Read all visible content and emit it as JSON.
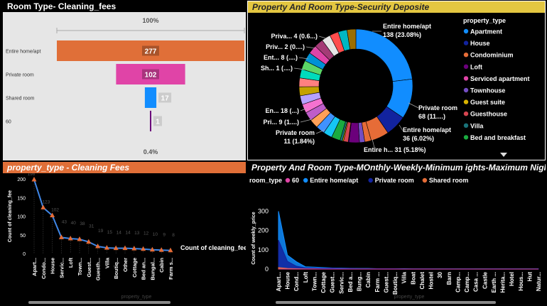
{
  "funnel": {
    "title": "Room Type- Cleaning_fees",
    "top_pct_label": "100%",
    "bottom_pct_label": "0.4%",
    "chart_data": {
      "type": "bar",
      "orientation": "horizontal-funnel",
      "categories": [
        "Entire home/apt",
        "Private room",
        "Shared room",
        "60"
      ],
      "values": [
        277,
        102,
        17,
        1
      ],
      "colors": [
        "#e06f38",
        "#e044a7",
        "#118dff",
        "#6b007b"
      ],
      "xlabel": "",
      "ylabel": ""
    }
  },
  "donut": {
    "title": "Property And Room Type-Security Deposite",
    "legend_title": "property_type",
    "legend": [
      {
        "label": "Apartment",
        "color": "#118dff"
      },
      {
        "label": "House",
        "color": "#12239e"
      },
      {
        "label": "Condominium",
        "color": "#e66c37"
      },
      {
        "label": "Loft",
        "color": "#6b007b"
      },
      {
        "label": "Serviced apartment",
        "color": "#e044a7"
      },
      {
        "label": "Townhouse",
        "color": "#744ec2"
      },
      {
        "label": "Guest suite",
        "color": "#d9b300"
      },
      {
        "label": "Guesthouse",
        "color": "#d64550"
      },
      {
        "label": "Villa",
        "color": "#197278"
      },
      {
        "label": "Bed and breakfast",
        "color": "#1aab40"
      }
    ],
    "labels": [
      "Entire home/apt",
      "138 (23.08%)",
      "Private room",
      "68 (11....)",
      "Entire home/apt",
      "36 (6.02%)",
      "Entire h... 31 (5.18%)",
      "Private room",
      "11 (1.84%)",
      "Pri... 9 (1....)",
      "En... 18 (...)",
      "Sh... 1 (....)",
      "Ent... 8 (....)",
      "Priv... 2 (0....)",
      "Priva... 4 (0.6...)"
    ],
    "chart_data": {
      "type": "pie",
      "donut": true,
      "slices": [
        {
          "label": "Entire home/apt",
          "value": 138,
          "percent": 23.08,
          "color": "#118dff"
        },
        {
          "label": "Private room",
          "value": 68,
          "color": "#118dff"
        },
        {
          "label": "Entire home/apt",
          "value": 36,
          "percent": 6.02,
          "color": "#12239e"
        },
        {
          "label": "Entire h...",
          "value": 31,
          "percent": 5.18,
          "color": "#e66c37"
        },
        {
          "label": "Private room",
          "value": 11,
          "percent": 1.84,
          "color": "#e66c37"
        },
        {
          "label": "Pri...",
          "value": 9,
          "color": "#744ec2"
        },
        {
          "label": "En...",
          "value": 18,
          "color": "#6b007b"
        },
        {
          "label": "Sh...",
          "value": 1,
          "color": "#12239e"
        },
        {
          "label": "Ent...",
          "value": 8,
          "color": "#d64550"
        },
        {
          "label": "Priv...",
          "value": 2,
          "color": "#d9b300"
        },
        {
          "label": "Priva...",
          "value": 4,
          "color": "#197278"
        }
      ],
      "other_colors": [
        "#1aab40",
        "#15c6f4",
        "#4092ff",
        "#ffa058",
        "#be5dc9",
        "#f472d0",
        "#b5a1ff",
        "#c4a200",
        "#ff8080",
        "#00dbbc",
        "#5bd667",
        "#0091d5",
        "#e044a7",
        "#a43b76",
        "#e6e6e6",
        "#ff4d4d",
        "#00b7c3",
        "#9b6e00"
      ],
      "legend_position": "right"
    }
  },
  "line": {
    "title": "property_type - Cleaning Fees",
    "ylabel": "Count of cleaning_fee",
    "xlabel": "property_type",
    "legend_label": "Count of cleaning_fee",
    "y_ticks": [
      "0",
      "50",
      "100",
      "150",
      "200"
    ],
    "chart_data": {
      "type": "line",
      "categories": [
        "Apart...",
        "Condo...",
        "House",
        "Servic...",
        "Loft",
        "Town...",
        "Guest...",
        "Guesth...",
        "Villa",
        "Boutiq...",
        "Other",
        "Cottage",
        "Bed an...",
        "Bungal...",
        "Cabin",
        "Farm s..."
      ],
      "values": [
        198,
        123,
        102,
        43,
        40,
        38,
        31,
        19,
        15,
        14,
        14,
        13,
        12,
        10,
        9,
        8
      ],
      "data_labels": [
        "198",
        "123",
        "102",
        "43",
        "40",
        "38",
        "31",
        "19",
        "15",
        "14",
        "14",
        "13",
        "12",
        "10",
        "9",
        "8"
      ],
      "ylim": [
        0,
        200
      ],
      "color": "#3f86e6",
      "marker_color": "#e66c37"
    }
  },
  "area": {
    "title": "Property And Room Type-MOnthly-Weekly-Minimum ights-Maximum Nights",
    "legend_title": "room_type",
    "legend": [
      {
        "label": "60",
        "color": "#e044a7"
      },
      {
        "label": "Entire home/apt",
        "color": "#118dff"
      },
      {
        "label": "Private room",
        "color": "#12239e"
      },
      {
        "label": "Shared room",
        "color": "#e66c37"
      }
    ],
    "ylabel": "Count of weekly_price",
    "xlabel": "property_type",
    "y_ticks": [
      "0",
      "100",
      "200",
      "300"
    ],
    "chart_data": {
      "type": "area",
      "categories": [
        "Apart...",
        "House",
        "Cond...",
        "Loft",
        "Town...",
        "Cottage",
        "Guest...",
        "Servic...",
        "Bed a...",
        "Bung...",
        "Cabin",
        "Farm ...",
        "Guest...",
        "Boutiq...",
        "Villa",
        "Boat",
        "Chalet",
        "Hostel",
        "30",
        "Barn",
        "Camp...",
        "Camp...",
        "Casa ...",
        "Castle",
        "Earth ...",
        "Herita...",
        "Hotel",
        "Hous...",
        "Hut",
        "Natur..."
      ],
      "ylim": [
        0,
        300
      ],
      "series": [
        {
          "name": "Entire home/apt",
          "values": [
            300,
            72,
            38,
            12,
            10,
            8,
            6,
            5,
            4,
            3,
            3,
            2,
            2,
            2,
            2,
            1,
            1,
            1,
            1,
            1,
            1,
            1,
            1,
            1,
            1,
            1,
            1,
            1,
            1,
            1
          ]
        },
        {
          "name": "Private room",
          "values": [
            150,
            40,
            15,
            6,
            6,
            4,
            5,
            3,
            3,
            2,
            2,
            2,
            2,
            2,
            1,
            1,
            1,
            1,
            0,
            1,
            0,
            1,
            0,
            0,
            1,
            0,
            1,
            0,
            0,
            1
          ]
        },
        {
          "name": "Shared room",
          "values": [
            8,
            3,
            2,
            1,
            1,
            0,
            0,
            0,
            0,
            0,
            0,
            0,
            0,
            0,
            0,
            0,
            0,
            0,
            0,
            0,
            0,
            0,
            0,
            0,
            0,
            0,
            0,
            0,
            0,
            0
          ]
        },
        {
          "name": "60",
          "values": [
            0,
            0,
            0,
            0,
            0,
            0,
            0,
            0,
            0,
            0,
            0,
            0,
            0,
            0,
            0,
            0,
            0,
            0,
            0,
            0,
            0,
            0,
            0,
            0,
            0,
            0,
            0,
            0,
            0,
            0
          ]
        }
      ]
    }
  }
}
